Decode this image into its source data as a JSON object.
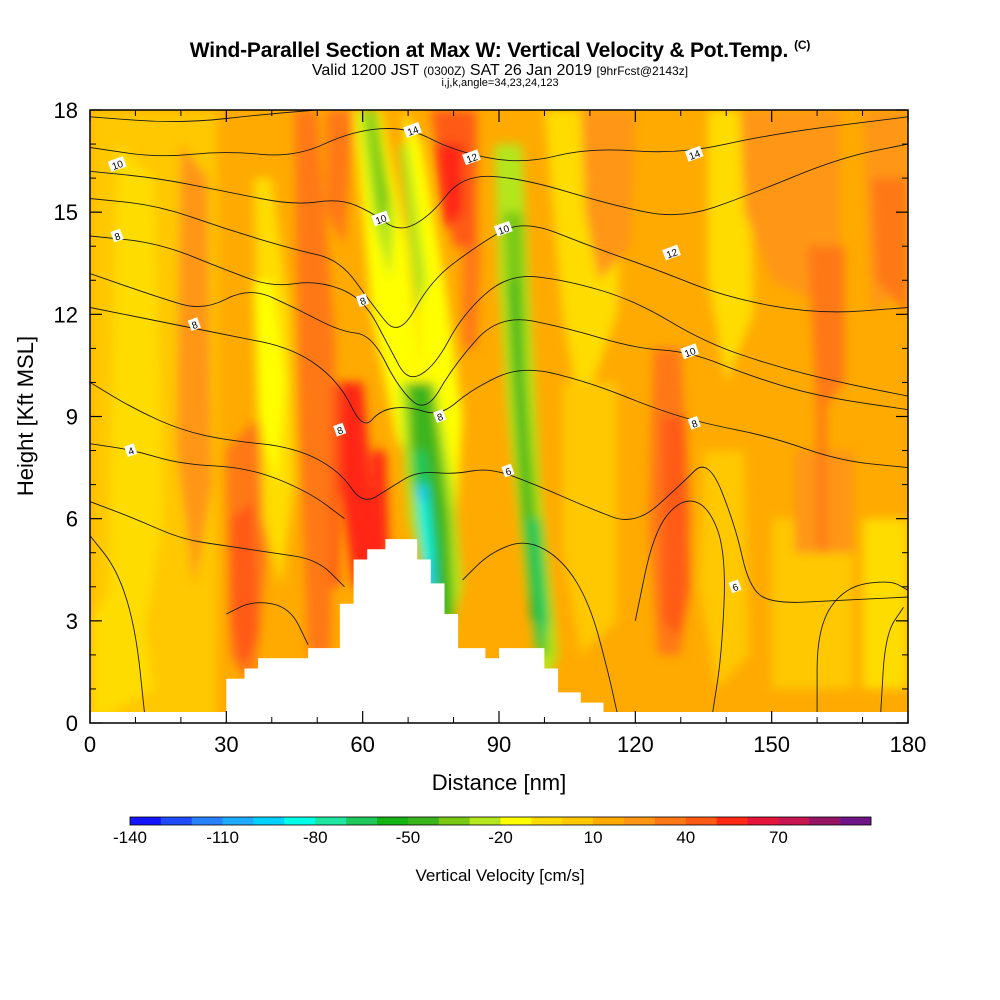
{
  "title": "Wind-Parallel Section at Max W: Vertical Velocity & Pot.Temp.",
  "title_mark": "(C)",
  "subtitle": {
    "valid": "Valid 1200 JST",
    "utc": "(0300Z)",
    "date": "SAT 26 Jan 2019",
    "fcst": "[9hrFcst@2143z]"
  },
  "subtitle2": "i,j,k,angle=34,23,24,123",
  "chart_data": {
    "type": "heatmap",
    "xlabel": "Distance [nm]",
    "ylabel": "Height [Kft MSL]",
    "xlim": [
      0,
      180
    ],
    "ylim": [
      0,
      18
    ],
    "xticks": [
      0,
      30,
      60,
      90,
      120,
      150,
      180
    ],
    "yticks": [
      0,
      3,
      6,
      9,
      12,
      15,
      18
    ],
    "colorbar": {
      "label": "Vertical Velocity [cm/s]",
      "min": -140,
      "max": 90,
      "step": 10,
      "tick_labels": [
        -140,
        -110,
        -80,
        -50,
        -20,
        10,
        40,
        70
      ],
      "colors": [
        "#1414ff",
        "#1e4bff",
        "#2882ff",
        "#1eaaff",
        "#00d2ff",
        "#00ffe6",
        "#1ee6a0",
        "#1ec85a",
        "#14b414",
        "#3cb41e",
        "#78c814",
        "#b4e61e",
        "#ffff00",
        "#ffdc00",
        "#ffc800",
        "#ffaa00",
        "#ff9614",
        "#ff7814",
        "#ff5a14",
        "#ff2814",
        "#e6143c",
        "#c81450",
        "#961464",
        "#6e1487"
      ]
    },
    "terrain_profile": [
      [
        0,
        0.3
      ],
      [
        30,
        0.3
      ],
      [
        30,
        1.3
      ],
      [
        34,
        1.3
      ],
      [
        34,
        1.6
      ],
      [
        37,
        1.6
      ],
      [
        37,
        1.9
      ],
      [
        48,
        1.9
      ],
      [
        48,
        2.2
      ],
      [
        55,
        2.2
      ],
      [
        55,
        3.5
      ],
      [
        58,
        3.5
      ],
      [
        58,
        4.8
      ],
      [
        61,
        4.8
      ],
      [
        61,
        5.1
      ],
      [
        65,
        5.1
      ],
      [
        65,
        5.4
      ],
      [
        72,
        5.4
      ],
      [
        72,
        4.8
      ],
      [
        75,
        4.8
      ],
      [
        75,
        4.1
      ],
      [
        78,
        4.1
      ],
      [
        78,
        3.2
      ],
      [
        81,
        3.2
      ],
      [
        81,
        2.2
      ],
      [
        87,
        2.2
      ],
      [
        87,
        1.9
      ],
      [
        90,
        1.9
      ],
      [
        90,
        2.2
      ],
      [
        100,
        2.2
      ],
      [
        100,
        1.6
      ],
      [
        103,
        1.6
      ],
      [
        103,
        0.9
      ],
      [
        108,
        0.9
      ],
      [
        108,
        0.6
      ],
      [
        113,
        0.6
      ],
      [
        113,
        0.3
      ],
      [
        180,
        0.3
      ]
    ],
    "theta_contour_labels": [
      {
        "text": "14",
        "x": 71,
        "y": 17.4
      },
      {
        "text": "12",
        "x": 84,
        "y": 16.6
      },
      {
        "text": "14",
        "x": 133,
        "y": 16.7
      },
      {
        "text": "10",
        "x": 6,
        "y": 16.4
      },
      {
        "text": "10",
        "x": 64,
        "y": 14.8
      },
      {
        "text": "10",
        "x": 91,
        "y": 14.5
      },
      {
        "text": "8",
        "x": 6,
        "y": 14.3
      },
      {
        "text": "12",
        "x": 128,
        "y": 13.8
      },
      {
        "text": "8",
        "x": 60,
        "y": 12.4
      },
      {
        "text": "8",
        "x": 23,
        "y": 11.7
      },
      {
        "text": "10",
        "x": 132,
        "y": 10.9
      },
      {
        "text": "8",
        "x": 77,
        "y": 9.0
      },
      {
        "text": "8",
        "x": 55,
        "y": 8.6
      },
      {
        "text": "8",
        "x": 133,
        "y": 8.8
      },
      {
        "text": "4",
        "x": 9,
        "y": 8.0
      },
      {
        "text": "6",
        "x": 92,
        "y": 7.4
      },
      {
        "text": "6",
        "x": 142,
        "y": 4.0
      }
    ]
  }
}
